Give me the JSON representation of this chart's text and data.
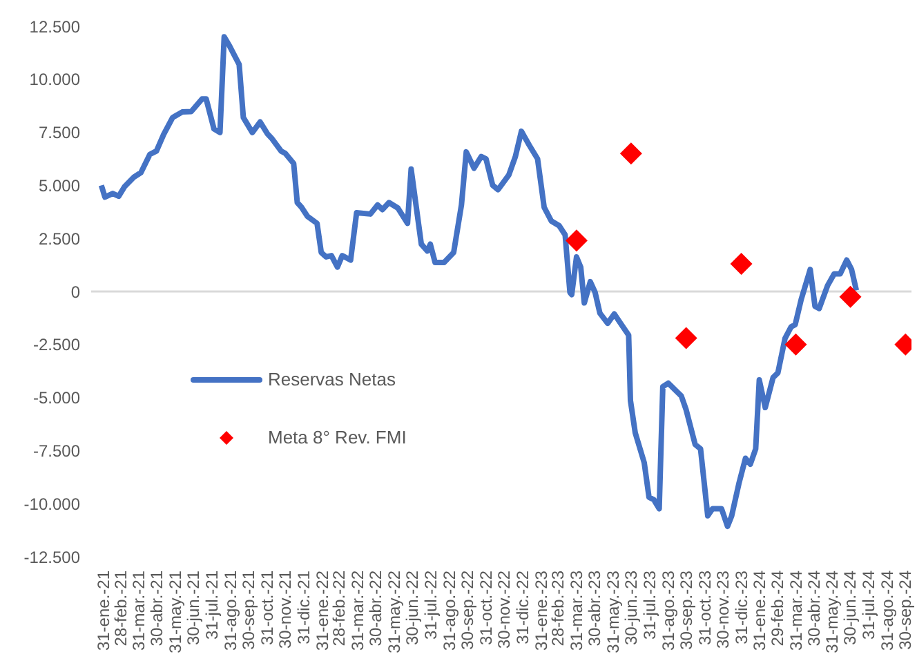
{
  "chart_data": {
    "type": "line",
    "xlim": [
      "2021-01-10",
      "2024-10-10"
    ],
    "xticks": [
      {
        "value": "2021-01-31",
        "label": "31-ene.-21"
      },
      {
        "value": "2021-02-28",
        "label": "28-feb.-21"
      },
      {
        "value": "2021-03-31",
        "label": "31-mar.-21"
      },
      {
        "value": "2021-04-30",
        "label": "30-abr.-21"
      },
      {
        "value": "2021-05-31",
        "label": "31-may.-21"
      },
      {
        "value": "2021-06-30",
        "label": "30-jun.-21"
      },
      {
        "value": "2021-07-31",
        "label": "31-jul.-21"
      },
      {
        "value": "2021-08-31",
        "label": "31-ago.-21"
      },
      {
        "value": "2021-09-30",
        "label": "30-sep.-21"
      },
      {
        "value": "2021-10-31",
        "label": "31-oct.-21"
      },
      {
        "value": "2021-11-30",
        "label": "30-nov.-21"
      },
      {
        "value": "2021-12-31",
        "label": "31-dic.-21"
      },
      {
        "value": "2022-01-31",
        "label": "31-ene.-22"
      },
      {
        "value": "2022-02-28",
        "label": "28-feb.-22"
      },
      {
        "value": "2022-03-31",
        "label": "31-mar.-22"
      },
      {
        "value": "2022-04-30",
        "label": "30-abr.-22"
      },
      {
        "value": "2022-05-31",
        "label": "31-may.-22"
      },
      {
        "value": "2022-06-30",
        "label": "30-jun.-22"
      },
      {
        "value": "2022-07-31",
        "label": "31-jul.-22"
      },
      {
        "value": "2022-08-31",
        "label": "31-ago.-22"
      },
      {
        "value": "2022-09-30",
        "label": "30-sep.-22"
      },
      {
        "value": "2022-10-31",
        "label": "31-oct.-22"
      },
      {
        "value": "2022-11-30",
        "label": "30-nov.-22"
      },
      {
        "value": "2022-12-31",
        "label": "31-dic.-22"
      },
      {
        "value": "2023-01-31",
        "label": "31-ene.-23"
      },
      {
        "value": "2023-02-28",
        "label": "28-feb.-23"
      },
      {
        "value": "2023-03-31",
        "label": "31-mar.-23"
      },
      {
        "value": "2023-04-30",
        "label": "30-abr.-23"
      },
      {
        "value": "2023-05-31",
        "label": "31-may.-23"
      },
      {
        "value": "2023-06-30",
        "label": "30-jun.-23"
      },
      {
        "value": "2023-07-31",
        "label": "31-jul.-23"
      },
      {
        "value": "2023-08-31",
        "label": "31-ago.-23"
      },
      {
        "value": "2023-09-30",
        "label": "30-sep.-23"
      },
      {
        "value": "2023-10-31",
        "label": "31-oct.-23"
      },
      {
        "value": "2023-11-30",
        "label": "30-nov.-23"
      },
      {
        "value": "2023-12-31",
        "label": "31-dic.-23"
      },
      {
        "value": "2024-01-31",
        "label": "31-ene.-24"
      },
      {
        "value": "2024-02-29",
        "label": "29-feb.-24"
      },
      {
        "value": "2024-03-31",
        "label": "31-mar.-24"
      },
      {
        "value": "2024-04-30",
        "label": "30-abr.-24"
      },
      {
        "value": "2024-05-31",
        "label": "31-may.-24"
      },
      {
        "value": "2024-06-30",
        "label": "30-jun.-24"
      },
      {
        "value": "2024-07-31",
        "label": "31-jul.-24"
      },
      {
        "value": "2024-08-31",
        "label": "31-ago.-24"
      },
      {
        "value": "2024-09-30",
        "label": "30-sep.-24"
      }
    ],
    "ylim": [
      -12500,
      12500
    ],
    "yticks": [
      {
        "value": -12500,
        "label": "-12.500"
      },
      {
        "value": -10000,
        "label": "-10.000"
      },
      {
        "value": -7500,
        "label": "-7.500"
      },
      {
        "value": -5000,
        "label": "-5.000"
      },
      {
        "value": -2500,
        "label": "-2.500"
      },
      0,
      {
        "value": 2500,
        "label": "2.500"
      },
      {
        "value": 5000,
        "label": "5.000"
      },
      {
        "value": 7500,
        "label": "7.500"
      },
      {
        "value": 10000,
        "label": "10.000"
      },
      {
        "value": 12500,
        "label": "12.500"
      }
    ],
    "legend": "bottom left",
    "series": [
      {
        "name": "Reservas Netas",
        "color": "#4472c4",
        "marker": "none",
        "x": [
          "2021-01-27",
          "2021-02-02",
          "2021-02-15",
          "2021-02-25",
          "2021-03-07",
          "2021-03-22",
          "2021-04-03",
          "2021-04-18",
          "2021-04-29",
          "2021-05-11",
          "2021-05-26",
          "2021-06-11",
          "2021-06-26",
          "2021-07-14",
          "2021-07-21",
          "2021-08-03",
          "2021-08-13",
          "2021-08-20",
          "2021-08-29",
          "2021-09-14",
          "2021-09-21",
          "2021-10-06",
          "2021-10-19",
          "2021-10-31",
          "2021-11-07",
          "2021-11-23",
          "2021-11-30",
          "2021-12-14",
          "2021-12-20",
          "2021-12-27",
          "2022-01-06",
          "2022-01-22",
          "2022-01-29",
          "2022-02-06",
          "2022-02-15",
          "2022-02-25",
          "2022-03-05",
          "2022-03-19",
          "2022-03-29",
          "2022-04-21",
          "2022-05-03",
          "2022-05-11",
          "2022-05-22",
          "2022-06-06",
          "2022-06-22",
          "2022-06-28",
          "2022-07-15",
          "2022-07-25",
          "2022-07-30",
          "2022-08-07",
          "2022-08-22",
          "2022-09-07",
          "2022-09-20",
          "2022-09-28",
          "2022-10-11",
          "2022-10-23",
          "2022-10-31",
          "2022-11-11",
          "2022-11-20",
          "2022-12-08",
          "2022-12-19",
          "2022-12-29",
          "2023-01-11",
          "2023-01-25",
          "2023-02-05",
          "2023-02-17",
          "2023-03-02",
          "2023-03-12",
          "2023-03-20",
          "2023-03-23",
          "2023-03-31",
          "2023-04-07",
          "2023-04-13",
          "2023-04-23",
          "2023-05-01",
          "2023-05-09",
          "2023-05-22",
          "2023-06-02",
          "2023-06-14",
          "2023-06-26",
          "2023-06-29",
          "2023-07-07",
          "2023-07-22",
          "2023-07-30",
          "2023-08-07",
          "2023-08-16",
          "2023-08-22",
          "2023-08-31",
          "2023-09-22",
          "2023-09-30",
          "2023-10-15",
          "2023-10-24",
          "2023-11-05",
          "2023-11-13",
          "2023-11-28",
          "2023-12-08",
          "2023-12-15",
          "2023-12-27",
          "2024-01-07",
          "2024-01-15",
          "2024-01-24",
          "2024-01-30",
          "2024-02-09",
          "2024-02-22",
          "2024-03-01",
          "2024-03-13",
          "2024-03-23",
          "2024-03-30",
          "2024-04-09",
          "2024-04-24",
          "2024-05-02",
          "2024-05-09",
          "2024-05-23",
          "2024-06-03",
          "2024-06-13",
          "2024-06-24",
          "2024-07-02",
          "2024-07-10"
        ],
        "values": [
          5000,
          4450,
          4620,
          4490,
          4950,
          5380,
          5600,
          6460,
          6620,
          7400,
          8200,
          8460,
          8480,
          9070,
          9070,
          7660,
          7490,
          12000,
          11570,
          10700,
          8200,
          7490,
          7990,
          7440,
          7230,
          6620,
          6510,
          6030,
          4190,
          3970,
          3540,
          3210,
          1840,
          1630,
          1690,
          1150,
          1690,
          1480,
          3710,
          3650,
          4080,
          3860,
          4190,
          3930,
          3210,
          5770,
          2230,
          1910,
          2230,
          1370,
          1370,
          1840,
          4080,
          6580,
          5810,
          6360,
          6250,
          5010,
          4800,
          5490,
          6360,
          7550,
          6900,
          6250,
          3970,
          3320,
          3100,
          2670,
          -40,
          -150,
          1630,
          1150,
          -540,
          460,
          -40,
          -1020,
          -1500,
          -1060,
          -1560,
          -2060,
          -5140,
          -6660,
          -8070,
          -9700,
          -9810,
          -10240,
          -4490,
          -4320,
          -4930,
          -5580,
          -7210,
          -7420,
          -10570,
          -10240,
          -10240,
          -11070,
          -10570,
          -9050,
          -7860,
          -8140,
          -7420,
          -4170,
          -5470,
          -4060,
          -3840,
          -2210,
          -1670,
          -1560,
          -370,
          1040,
          -700,
          -800,
          280,
          830,
          830,
          1480,
          1040,
          50
        ]
      },
      {
        "name": "Meta 8° Rev. FMI",
        "type": "scatter",
        "color": "#ff0000",
        "marker": "diamond",
        "x": [
          "2023-03-31",
          "2023-06-30",
          "2023-09-30",
          "2023-12-31",
          "2024-03-31",
          "2024-06-30",
          "2024-09-30"
        ],
        "values": [
          2400,
          6500,
          -2200,
          1300,
          -2500,
          -250,
          -2500
        ]
      }
    ]
  }
}
